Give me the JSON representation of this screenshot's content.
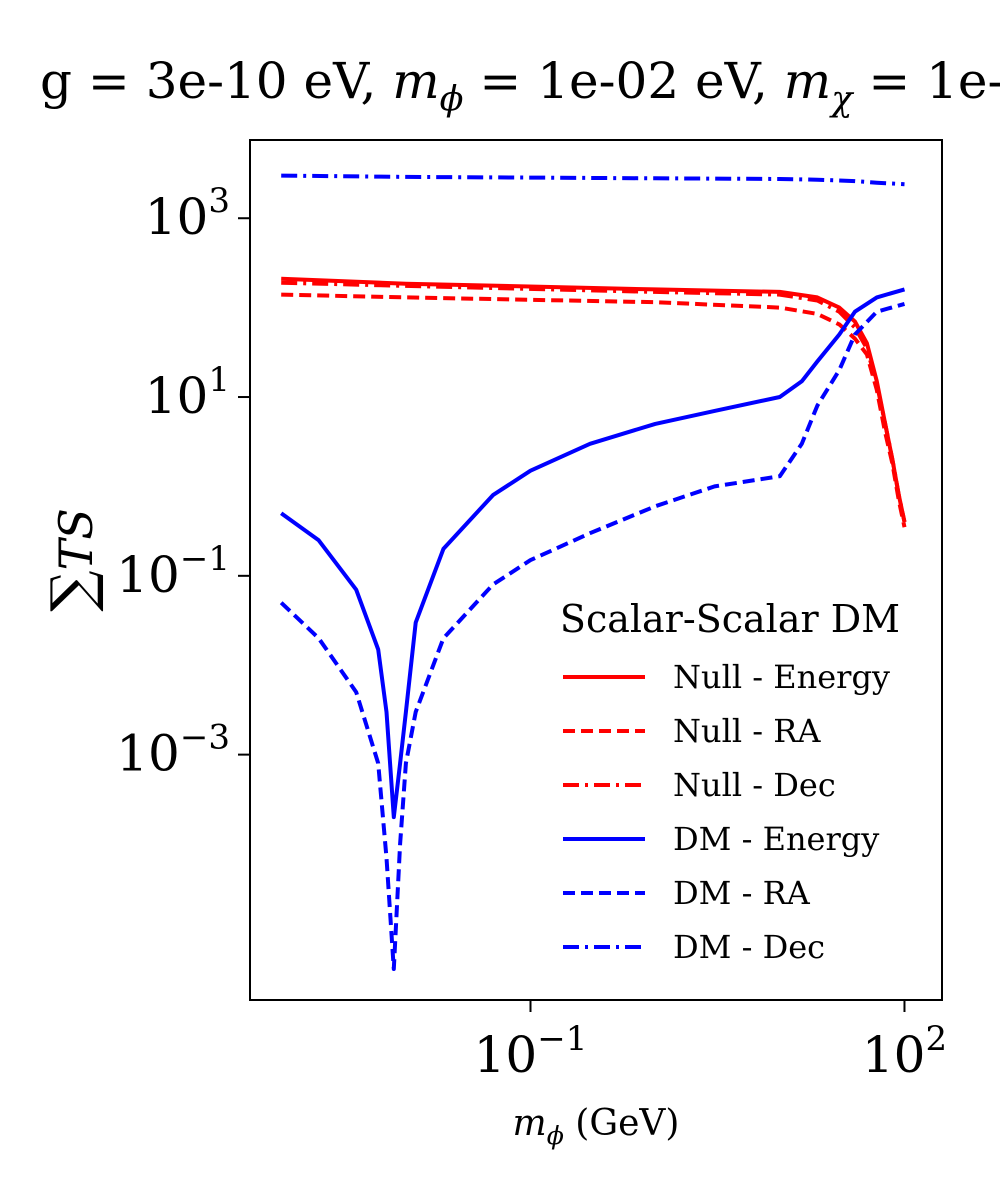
{
  "chart_data": {
    "type": "line",
    "title": {
      "parts": [
        {
          "text": "g = 3e-10 eV, ",
          "italic": false
        },
        {
          "text": "m",
          "italic": true
        },
        {
          "text": "ϕ",
          "italic": true,
          "sub": true
        },
        {
          "text": " = 1e-02 eV, ",
          "italic": false
        },
        {
          "text": "m",
          "italic": true
        },
        {
          "text": "χ",
          "italic": true,
          "sub": true
        },
        {
          "text": " = 1e-",
          "italic": false
        }
      ]
    },
    "xlabel": {
      "parts": [
        {
          "text": "m",
          "italic": true
        },
        {
          "text": "ϕ",
          "italic": true,
          "sub": true
        },
        {
          "text": " (GeV)",
          "italic": false
        }
      ]
    },
    "ylabel": {
      "sigma": "∑",
      "text": "TS"
    },
    "x_scale": "log",
    "y_scale": "log",
    "xlim": [
      0.000562,
      200
    ],
    "ylim": [
      1.8e-06,
      7500
    ],
    "x_ticks": [
      {
        "value": 0.1,
        "base": "10",
        "exp": "−1"
      },
      {
        "value": 100,
        "base": "10",
        "exp": "2"
      }
    ],
    "y_ticks": [
      {
        "value": 0.001,
        "base": "10",
        "exp": "−3"
      },
      {
        "value": 0.1,
        "base": "10",
        "exp": "−1"
      },
      {
        "value": 10,
        "base": "10",
        "exp": "1"
      },
      {
        "value": 1000,
        "base": "10",
        "exp": "3"
      }
    ],
    "legend": {
      "title": "Scalar-Scalar DM",
      "placement": "lower right"
    },
    "colors": {
      "null": "#ff0000",
      "dm": "#0000ff"
    },
    "series": [
      {
        "name": "Null - Energy",
        "color": "#ff0000",
        "dash": "solid",
        "points": [
          [
            0.001,
            210
          ],
          [
            0.01,
            185
          ],
          [
            1,
            160
          ],
          [
            10,
            150
          ],
          [
            20,
            130
          ],
          [
            30,
            100
          ],
          [
            40,
            70
          ],
          [
            50,
            40
          ],
          [
            60,
            15
          ],
          [
            70,
            5
          ],
          [
            80,
            2
          ],
          [
            90,
            0.8
          ],
          [
            100,
            0.4
          ]
        ]
      },
      {
        "name": "Null - RA",
        "color": "#ff0000",
        "dash": "dashed",
        "points": [
          [
            0.001,
            140
          ],
          [
            0.01,
            130
          ],
          [
            1,
            115
          ],
          [
            10,
            100
          ],
          [
            20,
            85
          ],
          [
            30,
            65
          ],
          [
            40,
            45
          ],
          [
            50,
            30
          ],
          [
            60,
            12
          ],
          [
            70,
            4
          ],
          [
            80,
            1.8
          ],
          [
            90,
            0.7
          ],
          [
            100,
            0.35
          ]
        ]
      },
      {
        "name": "Null - Dec",
        "color": "#ff0000",
        "dash": "dashdot",
        "points": [
          [
            0.001,
            190
          ],
          [
            0.01,
            175
          ],
          [
            1,
            150
          ],
          [
            10,
            140
          ],
          [
            20,
            120
          ],
          [
            30,
            90
          ],
          [
            40,
            60
          ],
          [
            50,
            35
          ],
          [
            60,
            14
          ],
          [
            70,
            5
          ],
          [
            80,
            2
          ],
          [
            90,
            0.8
          ],
          [
            100,
            0.4
          ]
        ]
      },
      {
        "name": "DM - Energy",
        "color": "#0000ff",
        "dash": "solid",
        "points": [
          [
            0.001,
            0.5
          ],
          [
            0.002,
            0.25
          ],
          [
            0.004,
            0.07
          ],
          [
            0.006,
            0.015
          ],
          [
            0.007,
            0.003
          ],
          [
            0.008,
            0.0002
          ],
          [
            0.009,
            0.0008
          ],
          [
            0.01,
            0.003
          ],
          [
            0.012,
            0.03
          ],
          [
            0.02,
            0.2
          ],
          [
            0.05,
            0.8
          ],
          [
            0.1,
            1.5
          ],
          [
            0.3,
            3
          ],
          [
            1,
            5
          ],
          [
            3,
            7
          ],
          [
            10,
            10
          ],
          [
            15,
            15
          ],
          [
            20,
            25
          ],
          [
            30,
            50
          ],
          [
            40,
            90
          ],
          [
            60,
            130
          ],
          [
            100,
            160
          ]
        ]
      },
      {
        "name": "DM - RA",
        "color": "#0000ff",
        "dash": "dashed",
        "points": [
          [
            0.001,
            0.05
          ],
          [
            0.002,
            0.02
          ],
          [
            0.004,
            0.005
          ],
          [
            0.006,
            0.0008
          ],
          [
            0.007,
            7e-05
          ],
          [
            0.008,
            4e-06
          ],
          [
            0.009,
            0.0001
          ],
          [
            0.01,
            0.0008
          ],
          [
            0.012,
            0.003
          ],
          [
            0.02,
            0.02
          ],
          [
            0.05,
            0.08
          ],
          [
            0.1,
            0.15
          ],
          [
            0.3,
            0.3
          ],
          [
            1,
            0.6
          ],
          [
            3,
            1
          ],
          [
            10,
            1.3
          ],
          [
            15,
            3
          ],
          [
            20,
            8
          ],
          [
            30,
            20
          ],
          [
            40,
            50
          ],
          [
            60,
            90
          ],
          [
            100,
            110
          ]
        ]
      },
      {
        "name": "DM - Dec",
        "color": "#0000ff",
        "dash": "dashdot",
        "points": [
          [
            0.001,
            3000
          ],
          [
            0.01,
            2900
          ],
          [
            0.1,
            2850
          ],
          [
            1,
            2800
          ],
          [
            10,
            2750
          ],
          [
            20,
            2700
          ],
          [
            40,
            2600
          ],
          [
            60,
            2500
          ],
          [
            100,
            2400
          ]
        ]
      }
    ]
  }
}
